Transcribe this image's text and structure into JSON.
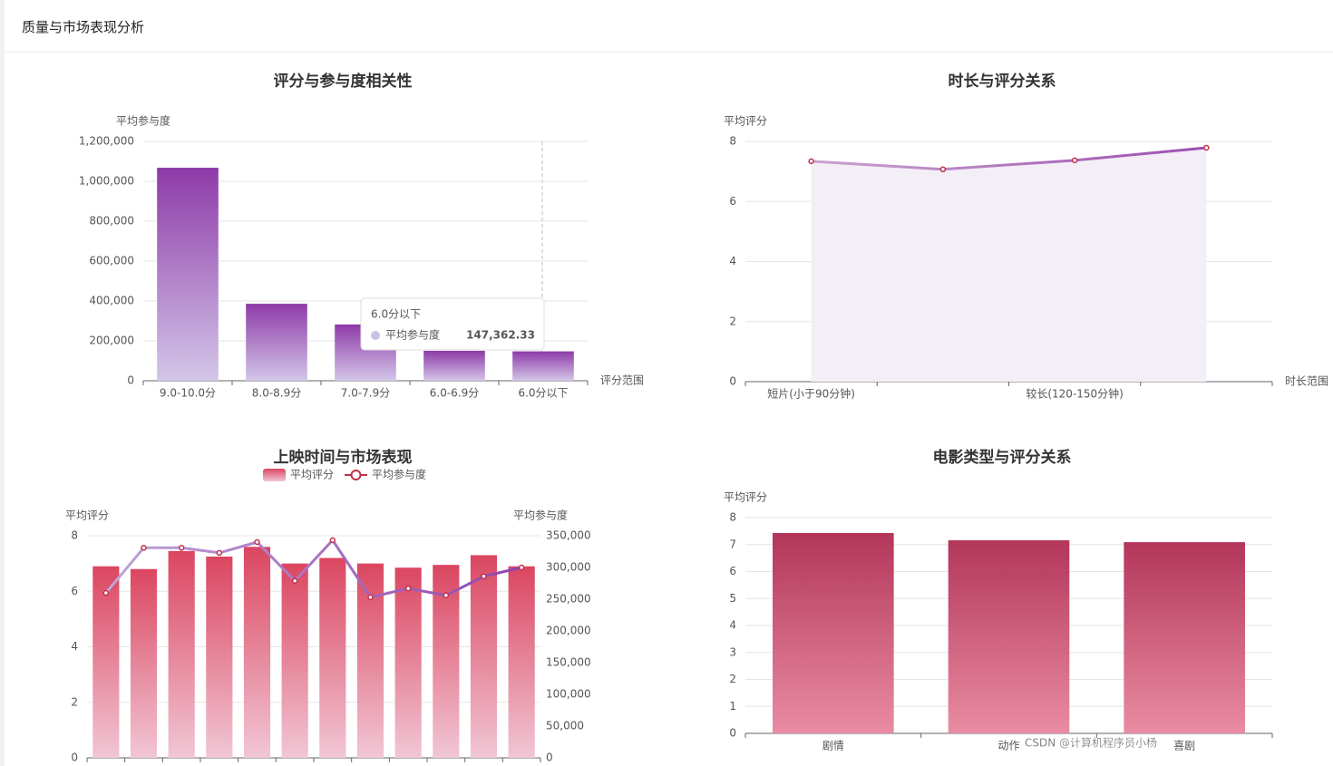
{
  "header": {
    "title": "质量与市场表现分析"
  },
  "watermark": "CSDN @计算机程序员小杨",
  "chart_data": [
    {
      "type": "bar",
      "title": "评分与参与度相关性",
      "y_label": "平均参与度",
      "x_label": "评分范围",
      "categories": [
        "9.0-10.0分",
        "8.0-8.9分",
        "7.0-7.9分",
        "6.0-6.9分",
        "6.0分以下"
      ],
      "values": [
        1068000,
        386000,
        282000,
        150000,
        147362.33
      ],
      "color": "#8e3aa8",
      "color_end": "#d3c6e8",
      "ylim": [
        0,
        1200000
      ],
      "yticks": [
        0,
        {
          "value": 200000,
          "label": "200,000"
        },
        {
          "value": 400000,
          "label": "400,000"
        },
        {
          "value": 600000,
          "label": "600,000"
        },
        {
          "value": 800000,
          "label": "800,000"
        },
        {
          "value": 1000000,
          "label": "1,000,000"
        },
        {
          "value": 1200000,
          "label": "1,200,000"
        }
      ],
      "grid": true,
      "tooltip": {
        "title": "6.0分以下",
        "name": "平均参与度",
        "value": "147,362.33"
      }
    },
    {
      "type": "line",
      "title": "时长与评分关系",
      "y_label": "平均评分",
      "x_label": "时长范围",
      "categories": [
        "短片(小于90分钟)",
        null,
        "较长(120-150分钟)",
        null
      ],
      "values": [
        7.34,
        7.07,
        7.37,
        7.79
      ],
      "color": "#c9a3cf",
      "color_end": "#9b4fb0",
      "area": true,
      "area_color": "#f4eef6",
      "ylim": [
        0,
        8
      ],
      "yticks": [
        0,
        2,
        4,
        6,
        8
      ],
      "grid": true
    },
    {
      "type": "combo",
      "title": "上映时间与市场表现",
      "y_label": "平均评分",
      "y2_label": "平均参与度",
      "categories": [
        null,
        null,
        null,
        null,
        null,
        null,
        null,
        null,
        null,
        null,
        null,
        null
      ],
      "series": [
        {
          "name": "平均评分",
          "type": "bar",
          "color": "#db4660",
          "color_end": "#f1c6d5",
          "values": [
            6.9,
            6.8,
            7.45,
            7.25,
            7.6,
            7.0,
            7.2,
            7.0,
            6.85,
            6.95,
            7.3,
            6.9
          ]
        },
        {
          "name": "平均参与度",
          "type": "line",
          "axis": "y2",
          "color": "#c0a5d8",
          "color_end": "#8e44ad",
          "values": [
            260000,
            331000,
            331000,
            323000,
            340000,
            279000,
            343000,
            253000,
            267000,
            256000,
            286000,
            300000
          ]
        }
      ],
      "ylim": [
        0,
        8
      ],
      "yticks": [
        0,
        2,
        4,
        6,
        8
      ],
      "y2lim": [
        0,
        350000
      ],
      "y2ticks": [
        0,
        {
          "value": 50000,
          "label": "50,000"
        },
        {
          "value": 100000,
          "label": "100,000"
        },
        {
          "value": 150000,
          "label": "150,000"
        },
        {
          "value": 200000,
          "label": "200,000"
        },
        {
          "value": 250000,
          "label": "250,000"
        },
        {
          "value": 300000,
          "label": "300,000"
        },
        {
          "value": 350000,
          "label": "350,000"
        }
      ],
      "grid": true,
      "legend": "top"
    },
    {
      "type": "bar",
      "title": "电影类型与评分关系",
      "y_label": "平均评分",
      "categories": [
        "剧情",
        "动作",
        "喜剧"
      ],
      "values": [
        7.43,
        7.16,
        7.09
      ],
      "color": "#b3365a",
      "color_end": "#e98ca3",
      "ylim": [
        0,
        8
      ],
      "yticks": [
        0,
        1,
        2,
        3,
        4,
        5,
        6,
        7,
        8
      ],
      "grid": true
    }
  ]
}
